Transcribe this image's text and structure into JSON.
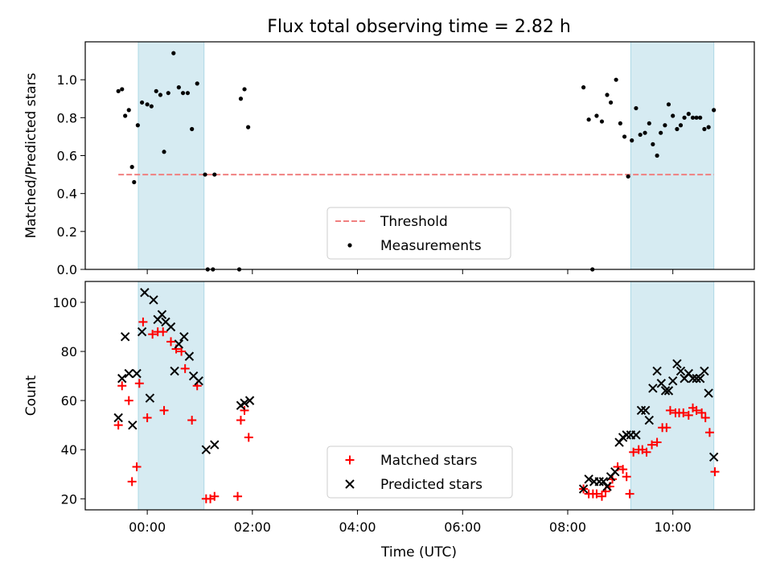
{
  "title": "Flux total observing time = 2.82 h",
  "xlabel": "Time (UTC)",
  "x_ticks": [
    "00:00",
    "02:00",
    "04:00",
    "06:00",
    "08:00",
    "10:00"
  ],
  "chart_data": [
    {
      "type": "scatter",
      "panel": "top",
      "ylabel": "Matched/Predicted stars",
      "x_unit": "hours (UTC, relative to 00:00)",
      "xlim": [
        -1.18,
        11.55
      ],
      "ylim": [
        0.0,
        1.2
      ],
      "y_ticks": [
        "0.0",
        "0.2",
        "0.4",
        "0.6",
        "0.8",
        "1.0"
      ],
      "grid": false,
      "legend_placement": "lower-center",
      "shaded_intervals": [
        [
          -0.17,
          1.08
        ],
        [
          9.2,
          10.78
        ]
      ],
      "threshold": {
        "name": "Threshold",
        "y": 0.5,
        "x_range": [
          -0.55,
          10.78
        ],
        "color": "#f08080"
      },
      "series": [
        {
          "name": "Measurements",
          "color": "#000000",
          "points": [
            [
              -0.55,
              0.94
            ],
            [
              -0.48,
              0.95
            ],
            [
              -0.42,
              0.81
            ],
            [
              -0.35,
              0.84
            ],
            [
              -0.29,
              0.54
            ],
            [
              -0.25,
              0.46
            ],
            [
              -0.18,
              0.76
            ],
            [
              -0.1,
              0.88
            ],
            [
              0.0,
              0.87
            ],
            [
              0.08,
              0.86
            ],
            [
              0.17,
              0.94
            ],
            [
              0.25,
              0.92
            ],
            [
              0.32,
              0.62
            ],
            [
              0.4,
              0.93
            ],
            [
              0.5,
              1.14
            ],
            [
              0.6,
              0.96
            ],
            [
              0.68,
              0.93
            ],
            [
              0.77,
              0.93
            ],
            [
              0.85,
              0.74
            ],
            [
              0.95,
              0.98
            ],
            [
              1.1,
              0.5
            ],
            [
              1.15,
              0.0
            ],
            [
              1.25,
              0.0
            ],
            [
              1.28,
              0.5
            ],
            [
              1.75,
              0.0
            ],
            [
              1.78,
              0.9
            ],
            [
              1.85,
              0.95
            ],
            [
              1.92,
              0.75
            ],
            [
              8.3,
              0.96
            ],
            [
              8.4,
              0.79
            ],
            [
              8.47,
              0.0
            ],
            [
              8.55,
              0.81
            ],
            [
              8.65,
              0.78
            ],
            [
              8.75,
              0.92
            ],
            [
              8.82,
              0.88
            ],
            [
              8.92,
              1.0
            ],
            [
              9.0,
              0.77
            ],
            [
              9.08,
              0.7
            ],
            [
              9.15,
              0.49
            ],
            [
              9.22,
              0.68
            ],
            [
              9.3,
              0.85
            ],
            [
              9.38,
              0.71
            ],
            [
              9.47,
              0.72
            ],
            [
              9.55,
              0.77
            ],
            [
              9.62,
              0.66
            ],
            [
              9.7,
              0.6
            ],
            [
              9.77,
              0.72
            ],
            [
              9.85,
              0.76
            ],
            [
              9.92,
              0.87
            ],
            [
              10.0,
              0.81
            ],
            [
              10.08,
              0.74
            ],
            [
              10.15,
              0.76
            ],
            [
              10.22,
              0.8
            ],
            [
              10.3,
              0.82
            ],
            [
              10.38,
              0.8
            ],
            [
              10.45,
              0.8
            ],
            [
              10.52,
              0.8
            ],
            [
              10.6,
              0.74
            ],
            [
              10.68,
              0.75
            ],
            [
              10.78,
              0.84
            ]
          ]
        }
      ]
    },
    {
      "type": "scatter",
      "panel": "bottom",
      "ylabel": "Count",
      "x_unit": "hours (UTC, relative to 00:00)",
      "xlim": [
        -1.18,
        11.55
      ],
      "ylim": [
        15.5,
        108.5
      ],
      "y_ticks": [
        "20",
        "40",
        "60",
        "80",
        "100"
      ],
      "grid": false,
      "legend_placement": "lower-center",
      "shaded_intervals": [
        [
          -0.17,
          1.08
        ],
        [
          9.2,
          10.78
        ]
      ],
      "series": [
        {
          "name": "Matched stars",
          "marker": "plus",
          "color": "#ff0000",
          "points": [
            [
              -0.55,
              50
            ],
            [
              -0.48,
              66
            ],
            [
              -0.35,
              60
            ],
            [
              -0.29,
              27
            ],
            [
              -0.2,
              33
            ],
            [
              -0.15,
              67
            ],
            [
              -0.08,
              92
            ],
            [
              0.0,
              53
            ],
            [
              0.1,
              87
            ],
            [
              0.2,
              88
            ],
            [
              0.3,
              88
            ],
            [
              0.32,
              56
            ],
            [
              0.45,
              84
            ],
            [
              0.55,
              81
            ],
            [
              0.65,
              80
            ],
            [
              0.72,
              73
            ],
            [
              0.85,
              52
            ],
            [
              0.95,
              66
            ],
            [
              1.12,
              20
            ],
            [
              1.2,
              20
            ],
            [
              1.28,
              21
            ],
            [
              1.72,
              21
            ],
            [
              1.78,
              52
            ],
            [
              1.85,
              56
            ],
            [
              1.93,
              45
            ],
            [
              8.3,
              24
            ],
            [
              8.4,
              22
            ],
            [
              8.48,
              22
            ],
            [
              8.55,
              22
            ],
            [
              8.65,
              21
            ],
            [
              8.72,
              23
            ],
            [
              8.8,
              25
            ],
            [
              8.85,
              28
            ],
            [
              8.95,
              33
            ],
            [
              9.05,
              32
            ],
            [
              9.12,
              29
            ],
            [
              9.18,
              22
            ],
            [
              9.25,
              39
            ],
            [
              9.35,
              40
            ],
            [
              9.42,
              40
            ],
            [
              9.5,
              39
            ],
            [
              9.6,
              42
            ],
            [
              9.7,
              43
            ],
            [
              9.8,
              49
            ],
            [
              9.88,
              49
            ],
            [
              9.95,
              56
            ],
            [
              10.05,
              55
            ],
            [
              10.12,
              55
            ],
            [
              10.2,
              55
            ],
            [
              10.3,
              54
            ],
            [
              10.38,
              57
            ],
            [
              10.45,
              56
            ],
            [
              10.55,
              55
            ],
            [
              10.62,
              53
            ],
            [
              10.7,
              47
            ],
            [
              10.8,
              31
            ]
          ]
        },
        {
          "name": "Predicted stars",
          "marker": "x",
          "color": "#000000",
          "points": [
            [
              -0.55,
              53
            ],
            [
              -0.48,
              69
            ],
            [
              -0.42,
              86
            ],
            [
              -0.35,
              71
            ],
            [
              -0.28,
              50
            ],
            [
              -0.2,
              71
            ],
            [
              -0.1,
              88
            ],
            [
              -0.05,
              104
            ],
            [
              0.05,
              61
            ],
            [
              0.12,
              101
            ],
            [
              0.2,
              93
            ],
            [
              0.28,
              95
            ],
            [
              0.35,
              92
            ],
            [
              0.45,
              90
            ],
            [
              0.52,
              72
            ],
            [
              0.6,
              83
            ],
            [
              0.7,
              86
            ],
            [
              0.8,
              78
            ],
            [
              0.88,
              70
            ],
            [
              0.98,
              68
            ],
            [
              1.12,
              40
            ],
            [
              1.28,
              42
            ],
            [
              1.78,
              58
            ],
            [
              1.85,
              59
            ],
            [
              1.95,
              60
            ],
            [
              8.3,
              24
            ],
            [
              8.4,
              28
            ],
            [
              8.5,
              27
            ],
            [
              8.6,
              27
            ],
            [
              8.68,
              27
            ],
            [
              8.75,
              25
            ],
            [
              8.82,
              29
            ],
            [
              8.9,
              31
            ],
            [
              8.98,
              43
            ],
            [
              9.05,
              45
            ],
            [
              9.12,
              46
            ],
            [
              9.2,
              46
            ],
            [
              9.3,
              46
            ],
            [
              9.4,
              56
            ],
            [
              9.48,
              56
            ],
            [
              9.55,
              52
            ],
            [
              9.62,
              65
            ],
            [
              9.7,
              72
            ],
            [
              9.78,
              67
            ],
            [
              9.86,
              64
            ],
            [
              9.92,
              64
            ],
            [
              10.0,
              68
            ],
            [
              10.08,
              75
            ],
            [
              10.15,
              72
            ],
            [
              10.22,
              69
            ],
            [
              10.3,
              71
            ],
            [
              10.38,
              69
            ],
            [
              10.45,
              69
            ],
            [
              10.52,
              69
            ],
            [
              10.6,
              72
            ],
            [
              10.68,
              63
            ],
            [
              10.78,
              37
            ]
          ]
        }
      ]
    }
  ]
}
